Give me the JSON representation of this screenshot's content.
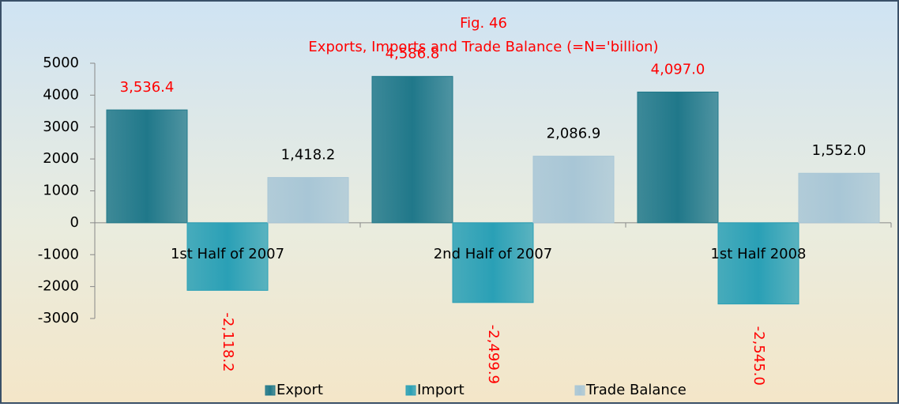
{
  "chart_data": {
    "type": "bar",
    "title": "Fig. 46",
    "subtitle": "Exports, Imports and Trade Balance (=N='billion)",
    "title_color": "#ff0000",
    "categories": [
      "1st Half of 2007",
      "2nd Half of 2007",
      "1st Half 2008"
    ],
    "series": [
      {
        "name": "Export",
        "color": "#20788a",
        "label_color": "#ff0000",
        "label_rotated": false,
        "values": [
          3536.4,
          4586.8,
          4097.0
        ],
        "value_labels": [
          "3,536.4",
          "4,586.8",
          "4,097.0"
        ]
      },
      {
        "name": "Import",
        "color": "#2aa0b6",
        "label_color": "#ff0000",
        "label_rotated": true,
        "values": [
          -2118.2,
          -2499.9,
          -2545.0
        ],
        "value_labels": [
          "-2,118.2",
          "-2,499.9",
          "-2,545.0"
        ]
      },
      {
        "name": "Trade Balance",
        "color": "#a8c6d6",
        "label_color": "#000000",
        "label_rotated": false,
        "values": [
          1418.2,
          2086.9,
          1552.0
        ],
        "value_labels": [
          "1,418.2",
          "2,086.9",
          "1,552.0"
        ]
      }
    ],
    "ylim": [
      -3000,
      5000
    ],
    "yticks": [
      -3000,
      -2000,
      -1000,
      0,
      1000,
      2000,
      3000,
      4000,
      5000
    ],
    "grid": false,
    "legend": "bottom"
  }
}
